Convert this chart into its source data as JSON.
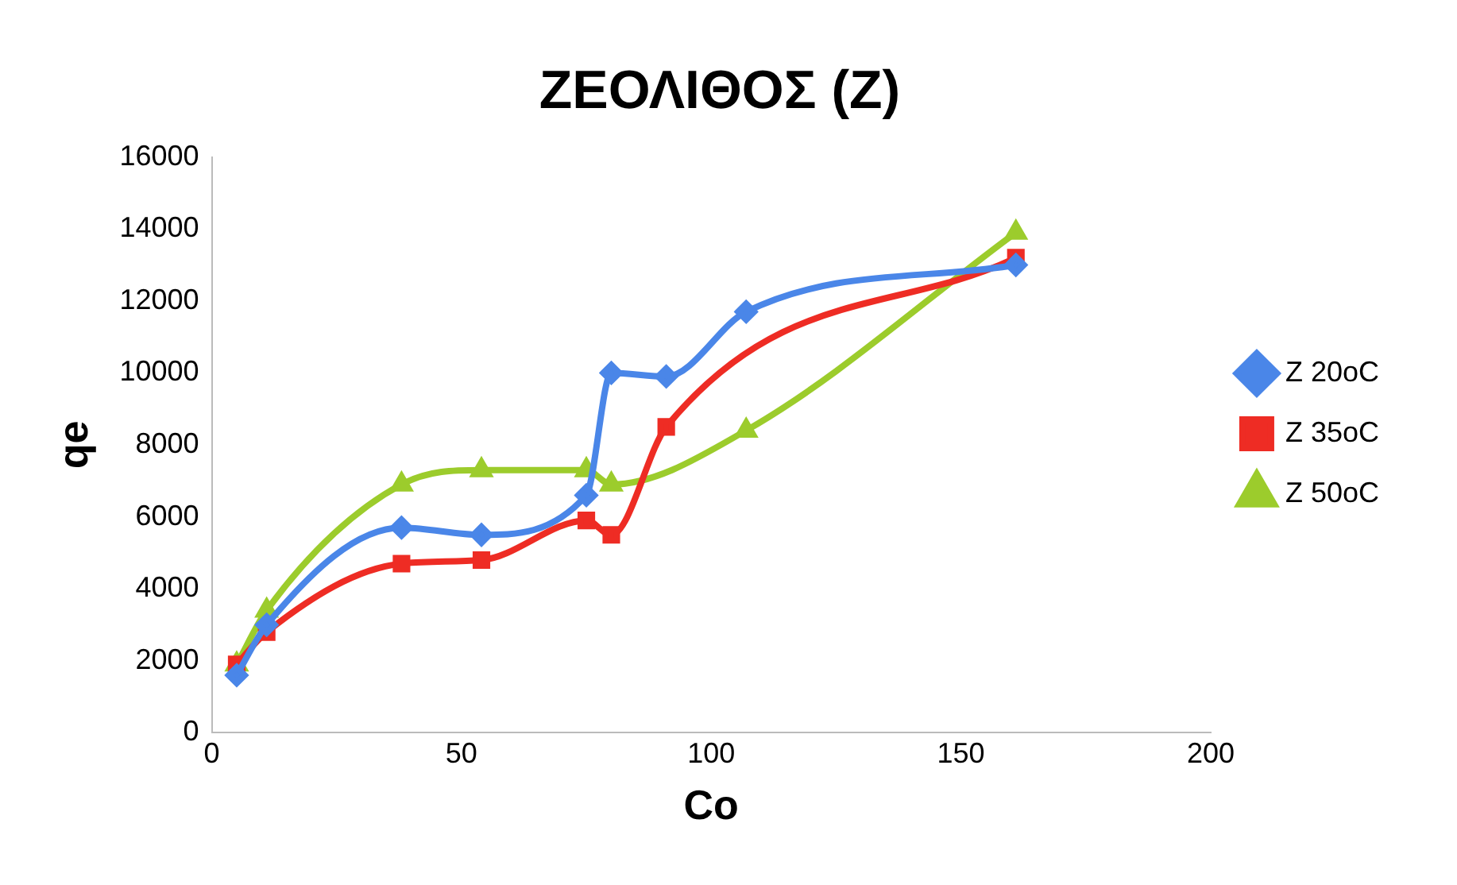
{
  "chart_data": {
    "type": "line",
    "title": "ΖΕΟΛΙΘΟΣ (Ζ)",
    "xlabel": "Co",
    "ylabel": "qe",
    "xlim": [
      0,
      200
    ],
    "xticks": [
      0,
      50,
      100,
      150,
      200
    ],
    "ylim": [
      0,
      16000
    ],
    "yticks": [
      0,
      2000,
      4000,
      6000,
      8000,
      10000,
      12000,
      14000,
      16000
    ],
    "grid": false,
    "legend": "right",
    "series": [
      {
        "name": "Z 20oC",
        "color": "#4a86e8",
        "marker": "diamond",
        "x": [
          5,
          11,
          38,
          54,
          75,
          80,
          91,
          107,
          161
        ],
        "values": [
          1600,
          3000,
          5700,
          5500,
          6600,
          10000,
          9900,
          11700,
          13000
        ]
      },
      {
        "name": "Z 35oC",
        "color": "#ee2c24",
        "marker": "square",
        "x": [
          5,
          11,
          38,
          54,
          75,
          80,
          91,
          161
        ],
        "values": [
          1900,
          2800,
          4700,
          4800,
          5900,
          5500,
          8500,
          13200
        ]
      },
      {
        "name": "Z 50oC",
        "color": "#9ccc2c",
        "marker": "triangle",
        "x": [
          5,
          11,
          38,
          54,
          75,
          80,
          107,
          161
        ],
        "values": [
          1900,
          3400,
          6900,
          7300,
          7300,
          6900,
          8400,
          13900
        ]
      }
    ]
  }
}
